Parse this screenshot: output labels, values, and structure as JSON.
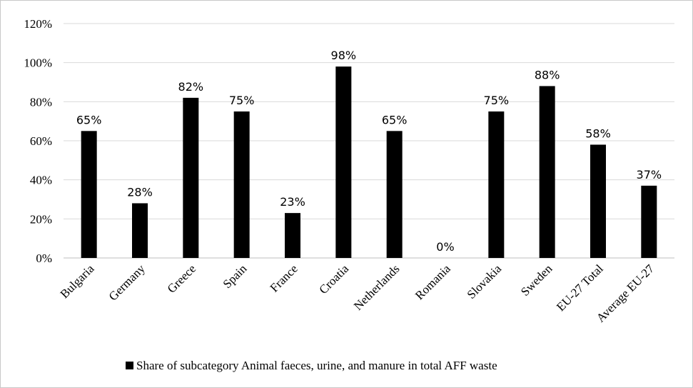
{
  "chart_data": {
    "type": "bar",
    "categories": [
      "Bulgaria",
      "Germany",
      "Greece",
      "Spain",
      "France",
      "Croatia",
      "Netherlands",
      "Romania",
      "Slovakia",
      "Sweden",
      "EU-27 Total",
      "Average EU-27"
    ],
    "series": [
      {
        "name": "Share of subcategory Animal faeces, urine, and manure in total AFF waste",
        "values": [
          65,
          28,
          82,
          75,
          23,
          98,
          65,
          0,
          75,
          88,
          58,
          37
        ],
        "color": "#000000"
      }
    ],
    "data_labels": [
      "65%",
      "28%",
      "82%",
      "75%",
      "23%",
      "98%",
      "65%",
      "0%",
      "75%",
      "88%",
      "58%",
      "37%"
    ],
    "y_ticks": [
      "0%",
      "20%",
      "40%",
      "60%",
      "80%",
      "100%",
      "120%"
    ],
    "ylim": [
      0,
      120
    ],
    "grid": true,
    "legend_position": "bottom"
  }
}
